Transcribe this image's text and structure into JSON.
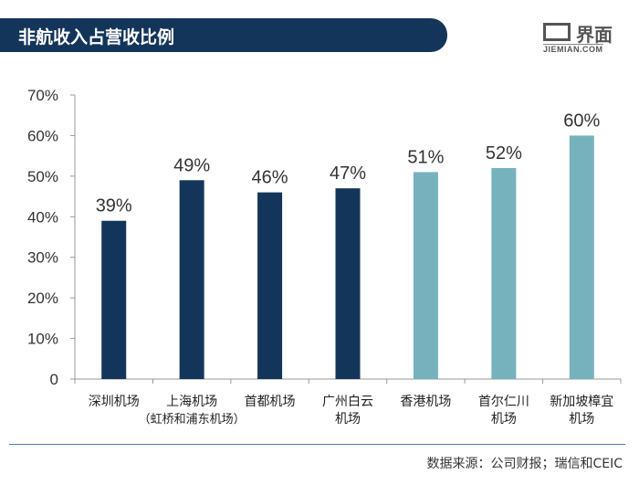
{
  "header": {
    "title": "非航收入占营收比例",
    "logo_text": "界面",
    "logo_sub": "JIEMIAN.COM"
  },
  "source": "数据来源：公司财报；瑞信和CEIC",
  "colors": {
    "dark": "#14355a",
    "teal": "#76b2be",
    "banner": "#14355a"
  },
  "chart_data": {
    "type": "bar",
    "title": "非航收入占营收比例",
    "categories": [
      [
        "深圳机场"
      ],
      [
        "上海机场",
        "（虹桥和浦东机场）"
      ],
      [
        "首都机场"
      ],
      [
        "广州白云",
        "机场"
      ],
      [
        "香港机场"
      ],
      [
        "首尔仁川",
        "机场"
      ],
      [
        "新加坡樟宜",
        "机场"
      ]
    ],
    "values": [
      39,
      49,
      46,
      47,
      51,
      52,
      60
    ],
    "data_labels": [
      "39%",
      "49%",
      "46%",
      "47%",
      "51%",
      "52%",
      "60%"
    ],
    "series_color": [
      "dark",
      "dark",
      "dark",
      "dark",
      "teal",
      "teal",
      "teal"
    ],
    "yticks": [
      "0",
      "10%",
      "20%",
      "30%",
      "40%",
      "50%",
      "60%",
      "70%"
    ],
    "ylim": [
      0,
      70
    ],
    "xlabel": "",
    "ylabel": "",
    "grid": false
  }
}
